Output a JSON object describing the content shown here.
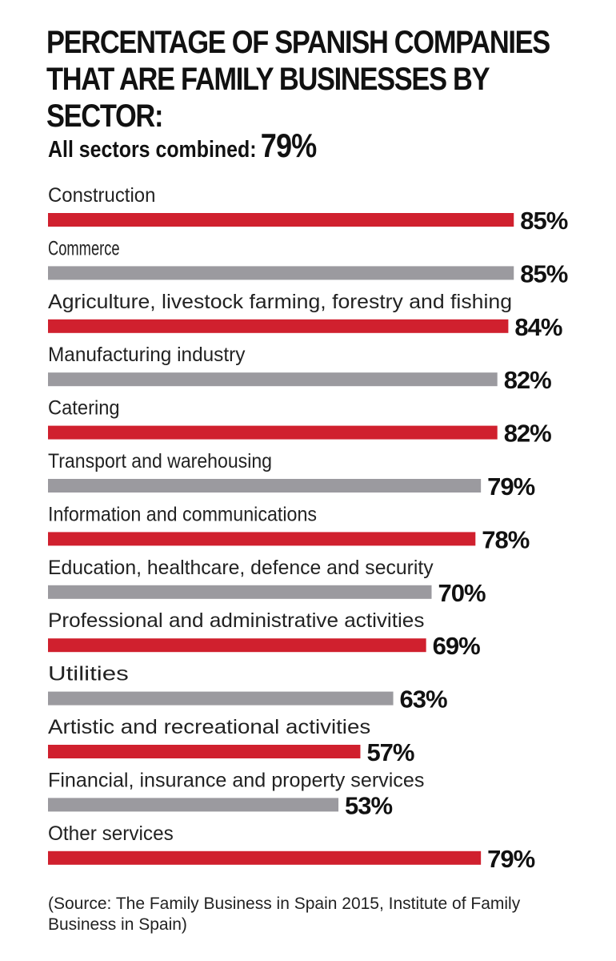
{
  "title": "PERCENTAGE OF SPANISH COMPANIES THAT ARE FAMILY BUSINESSES BY SECTOR:",
  "subtitle": {
    "label": "All sectors combined:",
    "value": "79%"
  },
  "source": "(Source: The Family Business in Spain 2015, Institute of Family Business in Spain)",
  "colors": {
    "red": "#d0202e",
    "gray": "#9b9a9f"
  },
  "chart_data": {
    "type": "bar",
    "orientation": "horizontal",
    "categories": [
      "Construction",
      "Commerce",
      "Agriculture, livestock farming, forestry and fishing",
      "Manufacturing industry",
      "Catering",
      "Transport and warehousing",
      "Information and communications",
      "Education, healthcare, defence and security",
      "Professional and administrative activities",
      "Utilities",
      "Artistic and recreational activities",
      "Financial, insurance and property services",
      "Other services"
    ],
    "values": [
      85,
      85,
      84,
      82,
      82,
      79,
      78,
      70,
      69,
      63,
      57,
      53,
      79
    ],
    "value_labels": [
      "85%",
      "85%",
      "84%",
      "82%",
      "82%",
      "79%",
      "78%",
      "70%",
      "69%",
      "63%",
      "57%",
      "53%",
      "79%"
    ],
    "bar_colors": [
      "red",
      "gray",
      "red",
      "gray",
      "red",
      "gray",
      "red",
      "gray",
      "red",
      "gray",
      "red",
      "gray",
      "red"
    ],
    "unit": "%",
    "xlim": [
      0,
      100
    ],
    "grid": false,
    "legend": "none"
  }
}
